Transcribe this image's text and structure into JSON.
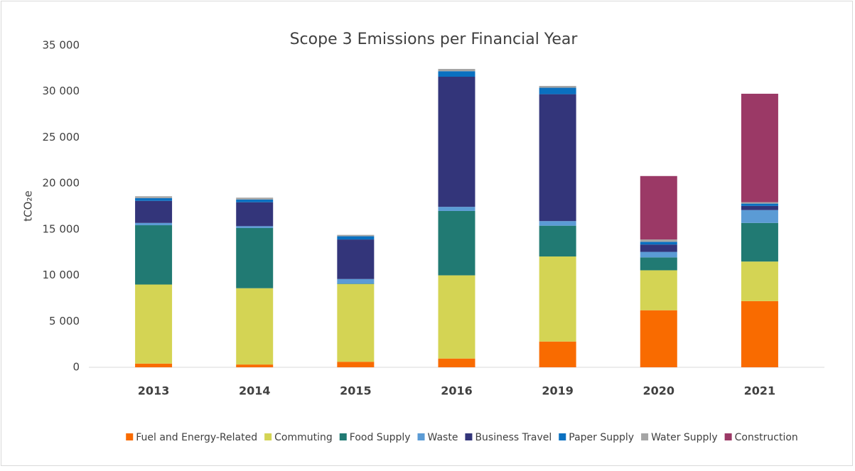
{
  "chart_data": {
    "type": "stacked_bar",
    "title": "Scope 3 Emissions per Financial Year",
    "y_label": "tCO₂e",
    "categories": [
      "2013",
      "2014",
      "2015",
      "2016",
      "2019",
      "2020",
      "2021"
    ],
    "series": [
      {
        "name": "Fuel and Energy-Related",
        "color": "#f96b00",
        "values": [
          400,
          300,
          600,
          950,
          2800,
          6200,
          7200
        ]
      },
      {
        "name": "Commuting",
        "color": "#d4d454",
        "values": [
          8600,
          8300,
          8450,
          9050,
          9250,
          4350,
          4300
        ]
      },
      {
        "name": "Food Supply",
        "color": "#217a73",
        "values": [
          6450,
          6550,
          50,
          7000,
          3350,
          1400,
          4200
        ]
      },
      {
        "name": "Waste",
        "color": "#5b9bd5",
        "values": [
          250,
          200,
          500,
          450,
          500,
          600,
          1400
        ]
      },
      {
        "name": "Business Travel",
        "color": "#33357a",
        "values": [
          2400,
          2600,
          4300,
          14150,
          13800,
          800,
          450
        ]
      },
      {
        "name": "Paper Supply",
        "color": "#0a70c0",
        "values": [
          300,
          300,
          350,
          600,
          700,
          300,
          250
        ]
      },
      {
        "name": "Water Supply",
        "color": "#a5a5a5",
        "values": [
          200,
          200,
          150,
          250,
          200,
          250,
          150
        ]
      },
      {
        "name": "Construction",
        "color": "#9b3966",
        "values": [
          0,
          0,
          0,
          0,
          0,
          6900,
          11800
        ]
      }
    ],
    "ylim": [
      0,
      35000
    ],
    "yticks": [
      0,
      {
        "value": 5000,
        "label": "5 000"
      },
      {
        "value": 10000,
        "label": "10 000"
      },
      {
        "value": 15000,
        "label": "15 000"
      },
      {
        "value": 20000,
        "label": "20 000"
      },
      {
        "value": 25000,
        "label": "25 000"
      },
      {
        "value": 30000,
        "label": "30 000"
      },
      {
        "value": 35000,
        "label": "35 000"
      }
    ],
    "grid": false,
    "legend": "bottom"
  }
}
